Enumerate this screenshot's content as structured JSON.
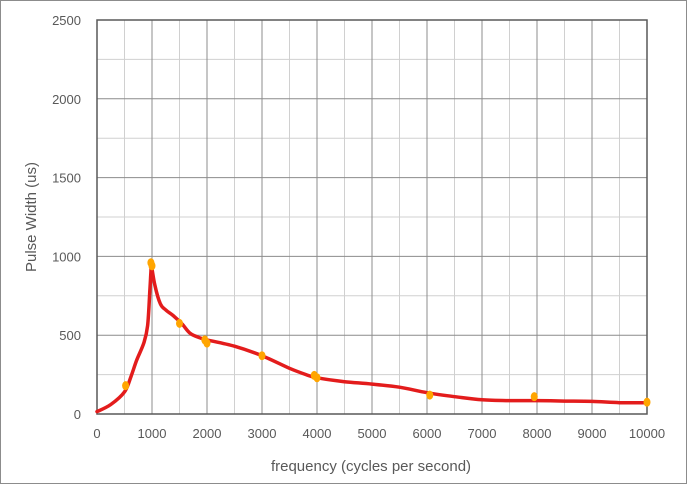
{
  "chart_data": {
    "type": "scatter",
    "title": "",
    "xlabel": "frequency (cycles per second)",
    "ylabel": "Pulse Width (us)",
    "xlim": [
      0,
      10000
    ],
    "ylim": [
      0,
      2500
    ],
    "x_ticks": [
      0,
      1000,
      2000,
      3000,
      4000,
      5000,
      6000,
      7000,
      8000,
      9000,
      10000
    ],
    "y_ticks": [
      0,
      500,
      1000,
      1500,
      2000,
      2500
    ],
    "x_minor_step": 500,
    "y_minor_step": 250,
    "grid": true,
    "legend": "none",
    "colors": {
      "markers": "#ffa500",
      "curve": "#e31c1c",
      "major_grid": "#8c8c8c",
      "minor_grid": "#d0d0d0",
      "plot_border": "#595959",
      "text": "#595959"
    },
    "points": [
      {
        "x": 520,
        "y": 180
      },
      {
        "x": 980,
        "y": 960
      },
      {
        "x": 1000,
        "y": 940
      },
      {
        "x": 1500,
        "y": 575
      },
      {
        "x": 1960,
        "y": 470
      },
      {
        "x": 2000,
        "y": 450
      },
      {
        "x": 3000,
        "y": 370
      },
      {
        "x": 3950,
        "y": 245
      },
      {
        "x": 4000,
        "y": 230
      },
      {
        "x": 6050,
        "y": 120
      },
      {
        "x": 7950,
        "y": 110
      },
      {
        "x": 10000,
        "y": 75
      }
    ],
    "curve": [
      {
        "x": 0,
        "y": 15
      },
      {
        "x": 250,
        "y": 60
      },
      {
        "x": 500,
        "y": 140
      },
      {
        "x": 620,
        "y": 240
      },
      {
        "x": 720,
        "y": 340
      },
      {
        "x": 850,
        "y": 450
      },
      {
        "x": 920,
        "y": 560
      },
      {
        "x": 960,
        "y": 780
      },
      {
        "x": 980,
        "y": 900
      },
      {
        "x": 990,
        "y": 940
      },
      {
        "x": 1050,
        "y": 820
      },
      {
        "x": 1150,
        "y": 700
      },
      {
        "x": 1250,
        "y": 660
      },
      {
        "x": 1400,
        "y": 620
      },
      {
        "x": 1550,
        "y": 570
      },
      {
        "x": 1700,
        "y": 510
      },
      {
        "x": 1900,
        "y": 480
      },
      {
        "x": 2000,
        "y": 470
      },
      {
        "x": 2500,
        "y": 430
      },
      {
        "x": 3000,
        "y": 370
      },
      {
        "x": 3500,
        "y": 290
      },
      {
        "x": 3800,
        "y": 250
      },
      {
        "x": 4000,
        "y": 230
      },
      {
        "x": 4500,
        "y": 205
      },
      {
        "x": 5000,
        "y": 190
      },
      {
        "x": 5500,
        "y": 170
      },
      {
        "x": 6000,
        "y": 135
      },
      {
        "x": 6500,
        "y": 110
      },
      {
        "x": 7000,
        "y": 90
      },
      {
        "x": 7500,
        "y": 85
      },
      {
        "x": 8000,
        "y": 85
      },
      {
        "x": 8500,
        "y": 82
      },
      {
        "x": 9000,
        "y": 80
      },
      {
        "x": 9500,
        "y": 72
      },
      {
        "x": 10000,
        "y": 72
      }
    ]
  }
}
